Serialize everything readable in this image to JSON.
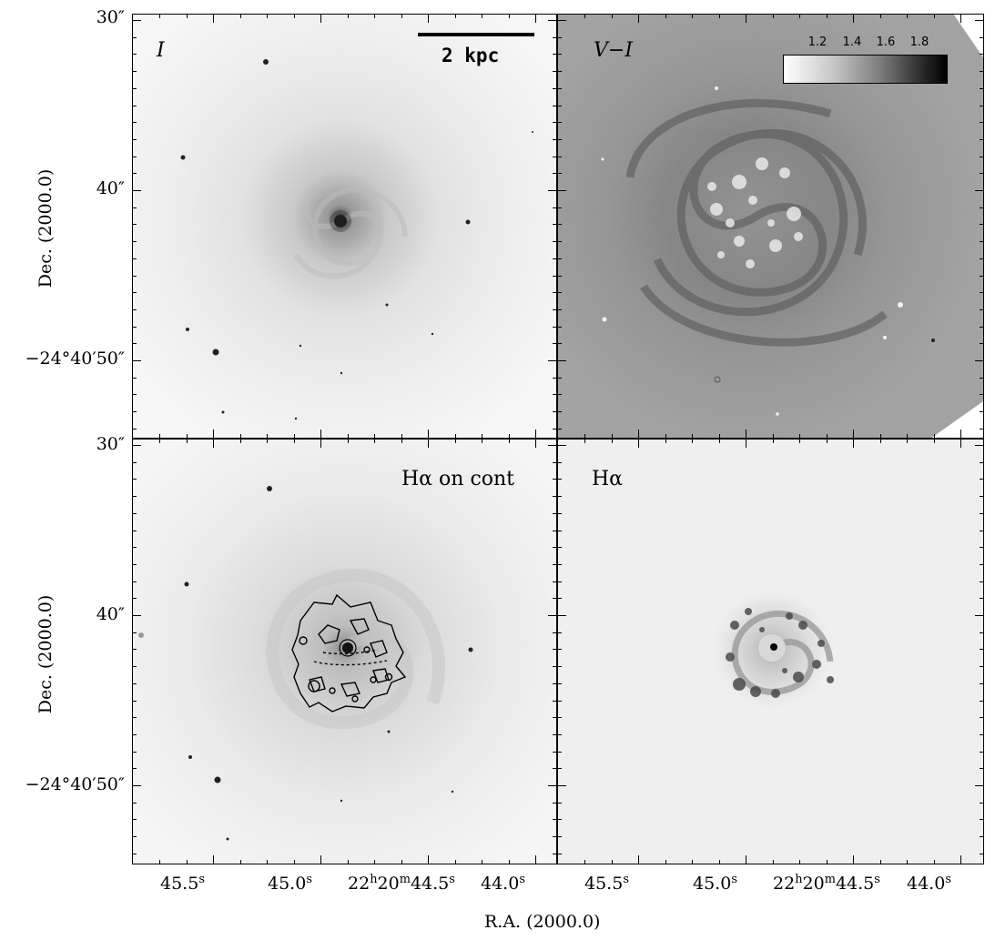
{
  "panels": {
    "top_left": {
      "label": "I",
      "scalebar_text": "2 kpc"
    },
    "top_right": {
      "label": "V−I",
      "colorbar_ticks": [
        "1.2",
        "1.4",
        "1.6",
        "1.8"
      ]
    },
    "bottom_left": {
      "label": "Hα on cont"
    },
    "bottom_right": {
      "label": "Hα"
    }
  },
  "axes": {
    "ytitle": "Dec. (2000.0)",
    "xtitle": "R.A. (2000.0)",
    "yticks_top": [
      "30″",
      "40″",
      "−24°40′50″"
    ],
    "yticks_bottom": [
      "30″",
      "40″",
      "−24°40′50″"
    ],
    "xticks": [
      "45.5",
      "45.0",
      "22h20m44.5",
      "44.0"
    ]
  },
  "colors": {
    "frame": "#000000",
    "background": "#ffffff"
  }
}
